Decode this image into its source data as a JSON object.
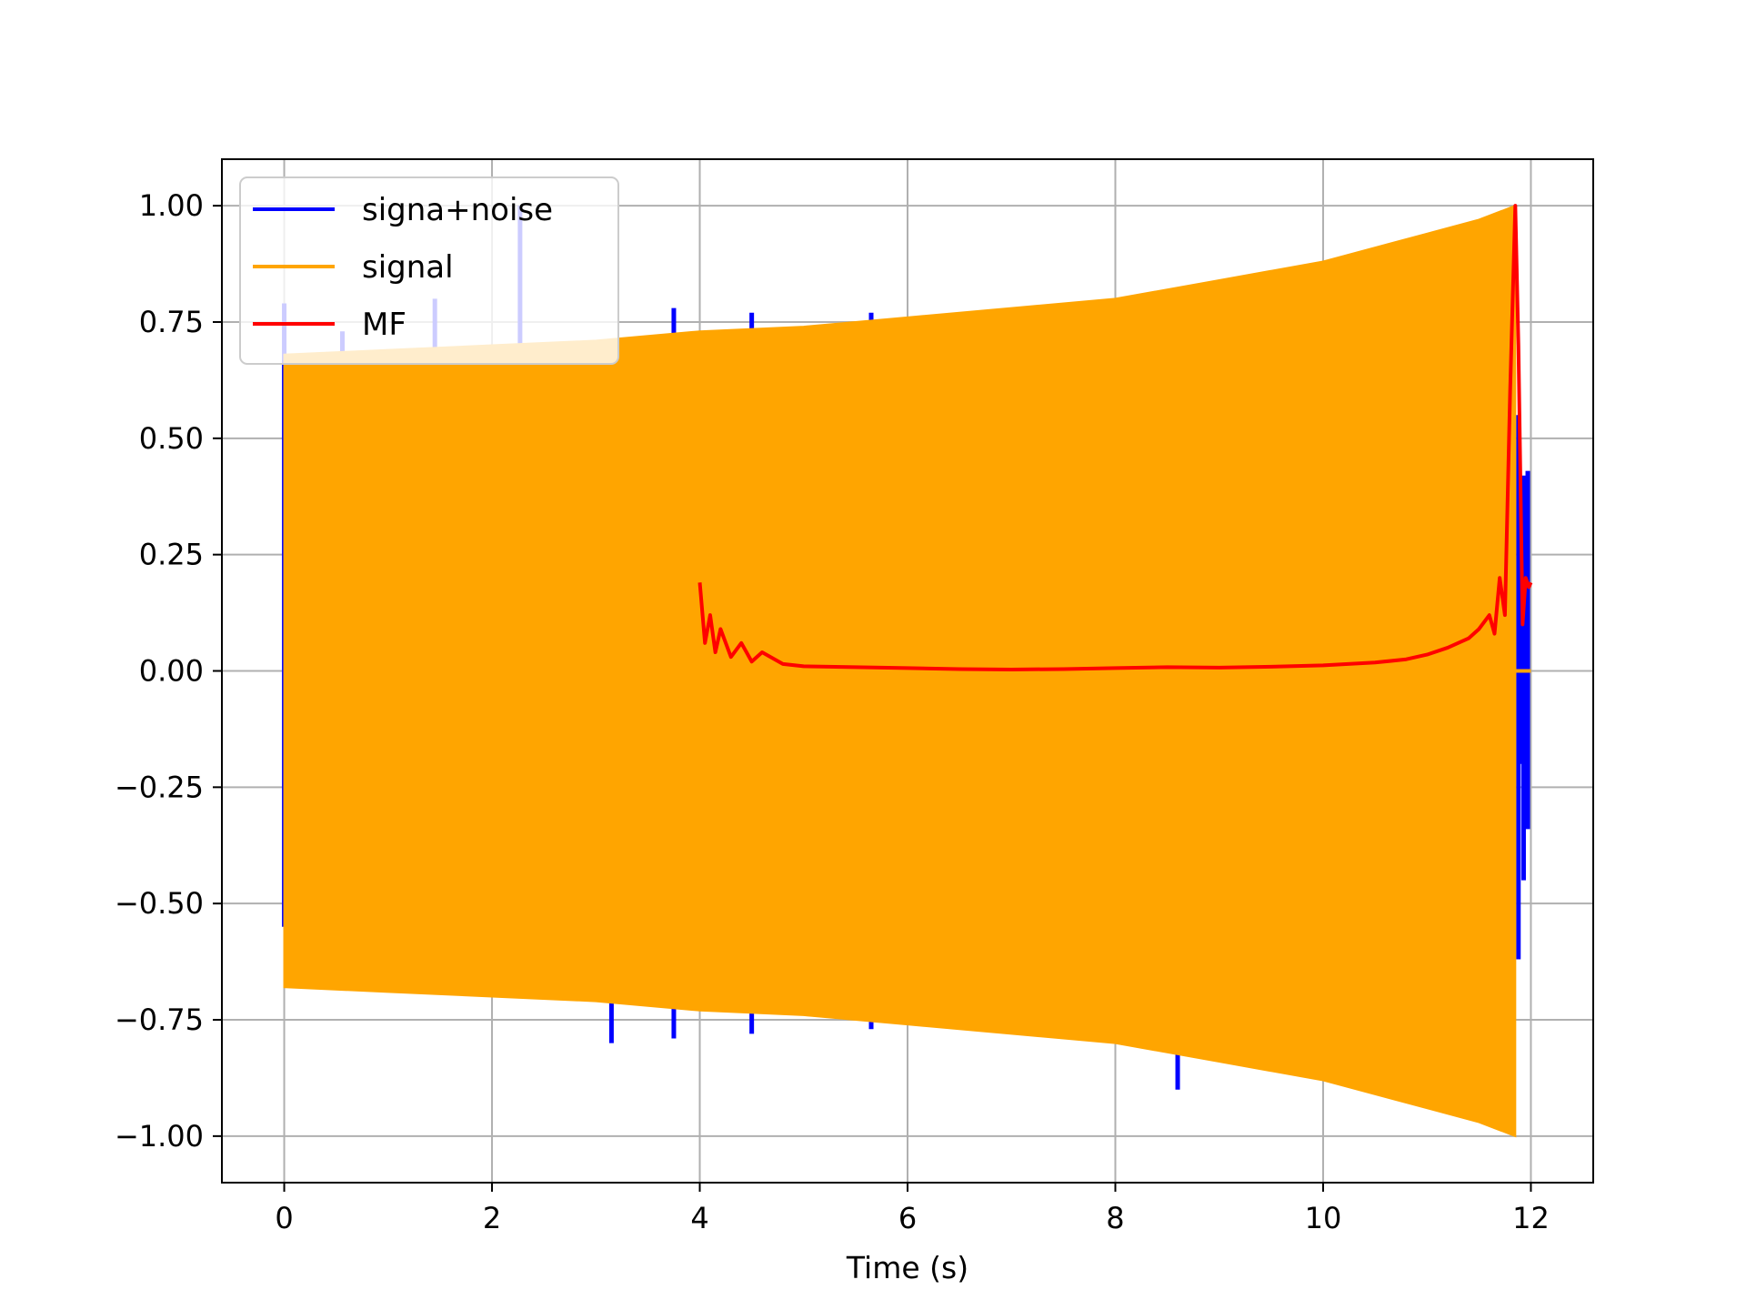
{
  "chart_data": {
    "type": "line",
    "title": "",
    "xlabel": "Time (s)",
    "ylabel": "",
    "xlim": [
      -0.6,
      12.6
    ],
    "ylim": [
      -1.1,
      1.1
    ],
    "grid": true,
    "legend_placement": "upper-left",
    "x_ticks": [
      0,
      2,
      4,
      6,
      8,
      10,
      12
    ],
    "x_tick_labels": [
      "0",
      "2",
      "4",
      "6",
      "8",
      "10",
      "12"
    ],
    "y_ticks": [
      1.0,
      0.75,
      0.5,
      0.25,
      0.0,
      -0.25,
      -0.5,
      -0.75,
      -1.0
    ],
    "y_tick_labels": [
      "1.00",
      "0.75",
      "0.50",
      "0.25",
      "0.00",
      "−0.25",
      "−0.50",
      "−0.75",
      "−1.00"
    ],
    "series": [
      {
        "name": "signa+noise",
        "color": "#0000ff",
        "description_of_shape": "noise spikes and burst near t=11.9",
        "spikes": [
          {
            "x": 0.0,
            "y0": -0.55,
            "y1": 0.79
          },
          {
            "x": 0.56,
            "y0": -0.3,
            "y1": 0.73
          },
          {
            "x": 1.45,
            "y0": -0.3,
            "y1": 0.8
          },
          {
            "x": 2.27,
            "y0": -0.3,
            "y1": 1.0
          },
          {
            "x": 3.15,
            "y0": -0.8,
            "y1": -0.3
          },
          {
            "x": 3.75,
            "y0": -0.79,
            "y1": 0.78
          },
          {
            "x": 4.5,
            "y0": -0.78,
            "y1": 0.77
          },
          {
            "x": 5.65,
            "y0": -0.77,
            "y1": 0.77
          },
          {
            "x": 8.6,
            "y0": -0.9,
            "y1": -0.5
          },
          {
            "x": 11.88,
            "y0": -0.62,
            "y1": 0.55
          },
          {
            "x": 11.93,
            "y0": -0.45,
            "y1": 0.42
          },
          {
            "x": 11.97,
            "y0": -0.34,
            "y1": 0.43
          },
          {
            "x": 11.9,
            "y0": -0.2,
            "y1": 0.3
          }
        ]
      },
      {
        "name": "signal",
        "color": "#ffa500",
        "envelope": {
          "x": [
            0.0,
            1.0,
            2.0,
            3.0,
            4.0,
            5.0,
            6.0,
            7.0,
            8.0,
            9.0,
            10.0,
            11.0,
            11.5,
            11.85
          ],
          "upper": [
            0.68,
            0.69,
            0.7,
            0.71,
            0.73,
            0.74,
            0.76,
            0.78,
            0.8,
            0.84,
            0.88,
            0.94,
            0.97,
            1.0
          ],
          "lower": [
            -0.68,
            -0.69,
            -0.7,
            -0.71,
            -0.73,
            -0.74,
            -0.76,
            -0.78,
            -0.8,
            -0.84,
            -0.88,
            -0.94,
            -0.97,
            -1.0
          ]
        },
        "tail": {
          "x": [
            11.85,
            12.0
          ],
          "y": [
            0.0,
            0.0
          ]
        }
      },
      {
        "name": "MF",
        "color": "#ff0000",
        "x": [
          4.0,
          4.05,
          4.1,
          4.15,
          4.2,
          4.3,
          4.4,
          4.5,
          4.6,
          4.8,
          5.0,
          5.5,
          6.0,
          6.5,
          7.0,
          7.5,
          8.0,
          8.5,
          9.0,
          9.5,
          10.0,
          10.5,
          10.8,
          11.0,
          11.2,
          11.4,
          11.5,
          11.6,
          11.65,
          11.7,
          11.75,
          11.8,
          11.85,
          11.88,
          11.92,
          11.95,
          11.98,
          12.0
        ],
        "y": [
          0.19,
          0.06,
          0.12,
          0.04,
          0.09,
          0.03,
          0.06,
          0.02,
          0.04,
          0.015,
          0.01,
          0.008,
          0.006,
          0.004,
          0.003,
          0.004,
          0.006,
          0.008,
          0.007,
          0.009,
          0.012,
          0.018,
          0.025,
          0.035,
          0.05,
          0.07,
          0.09,
          0.12,
          0.08,
          0.2,
          0.12,
          0.6,
          1.0,
          0.7,
          0.1,
          0.2,
          0.18,
          0.19
        ]
      }
    ],
    "legend": [
      {
        "label": "signa+noise",
        "color": "#0000ff"
      },
      {
        "label": "signal",
        "color": "#ffa500"
      },
      {
        "label": "MF",
        "color": "#ff0000"
      }
    ]
  }
}
